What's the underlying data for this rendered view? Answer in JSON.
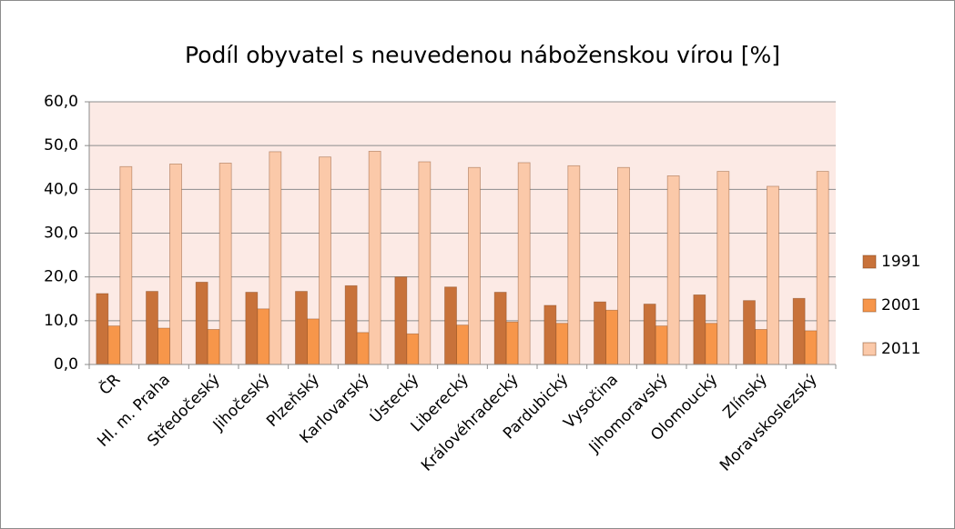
{
  "chart_data": {
    "type": "bar",
    "title": "Podíl obyvatel s neuvedenou náboženskou vírou [%]",
    "categories": [
      "ČR",
      "Hl. m. Praha",
      "Středočeský",
      "Jihočeský",
      "Plzeňský",
      "Karlovarský",
      "Ústecký",
      "Liberecký",
      "Královéhradecký",
      "Pardubický",
      "Vysočina",
      "Jihomoravský",
      "Olomoucký",
      "Zlínský",
      "Moravskoslezský"
    ],
    "series": [
      {
        "name": "1991",
        "color": "#c8723a",
        "values": [
          16.2,
          16.7,
          18.8,
          16.5,
          16.7,
          18.0,
          20.0,
          17.7,
          16.5,
          13.5,
          14.3,
          13.8,
          15.9,
          14.6,
          15.1
        ]
      },
      {
        "name": "2001",
        "color": "#f7964a",
        "values": [
          8.8,
          8.3,
          8.0,
          12.7,
          10.4,
          7.3,
          7.0,
          9.0,
          9.7,
          9.4,
          12.4,
          8.8,
          9.4,
          8.0,
          7.7
        ]
      },
      {
        "name": "2011",
        "color": "#fbc9a9",
        "values": [
          45.2,
          45.8,
          46.0,
          48.6,
          47.4,
          48.7,
          46.3,
          45.0,
          46.1,
          45.4,
          45.0,
          43.1,
          44.1,
          40.7,
          44.1
        ]
      }
    ],
    "ylim": [
      0,
      60
    ],
    "yticks": [
      {
        "value": 0,
        "label": "0,0"
      },
      {
        "value": 10,
        "label": "10,0"
      },
      {
        "value": 20,
        "label": "20,0"
      },
      {
        "value": 30,
        "label": "30,0"
      },
      {
        "value": 40,
        "label": "40,0"
      },
      {
        "value": 50,
        "label": "50,0"
      },
      {
        "value": 60,
        "label": "60,0"
      }
    ],
    "grid": true,
    "legend": "right"
  }
}
